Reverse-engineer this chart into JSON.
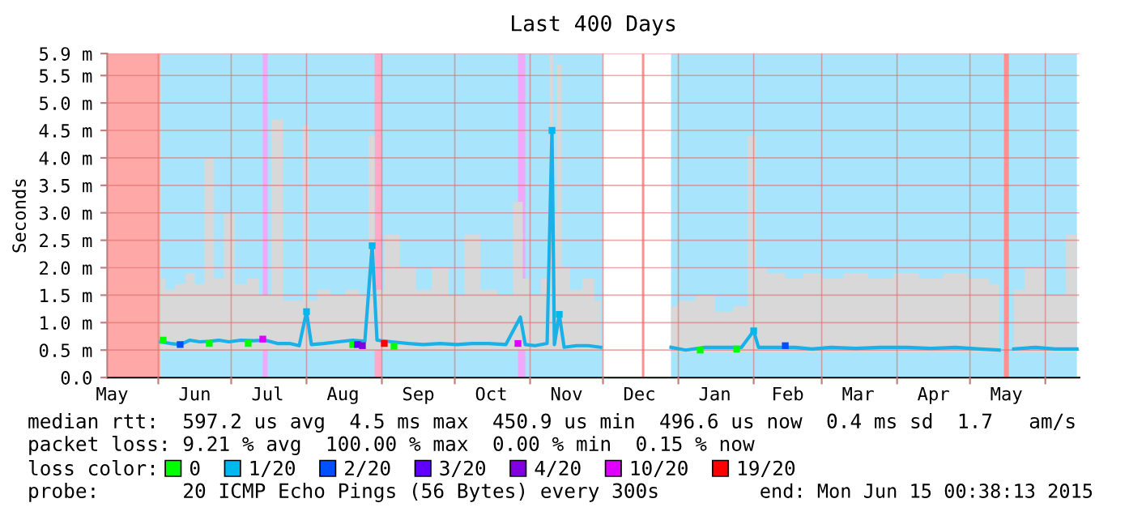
{
  "chart_data": {
    "type": "line",
    "title": "Last 400 Days",
    "ylabel": "Seconds",
    "xlim": [
      "2014-05-11",
      "2015-06-15"
    ],
    "xticks": [
      {
        "value": "2014-06-01",
        "label": null
      },
      {
        "value": "2014-07-01",
        "label": null
      },
      {
        "value": "2014-08-01",
        "label": null
      },
      {
        "value": "2014-09-01",
        "label": null
      },
      {
        "value": "2014-10-01",
        "label": null
      },
      {
        "value": "2014-11-01",
        "label": null
      },
      {
        "value": "2014-12-01",
        "label": null
      },
      {
        "value": "2015-01-01",
        "label": null
      },
      {
        "value": "2015-02-01",
        "label": null
      },
      {
        "value": "2015-03-01",
        "label": null
      },
      {
        "value": "2015-04-01",
        "label": null
      },
      {
        "value": "2015-05-01",
        "label": null
      },
      {
        "value": "2015-06-01",
        "label": null
      },
      {
        "value": "2014-05-13",
        "label": "May"
      },
      {
        "value": "2014-06-16",
        "label": "Jun"
      },
      {
        "value": "2014-07-16",
        "label": "Jul"
      },
      {
        "value": "2014-08-16",
        "label": "Aug"
      },
      {
        "value": "2014-09-16",
        "label": "Sep"
      },
      {
        "value": "2014-10-16",
        "label": "Oct"
      },
      {
        "value": "2014-11-16",
        "label": "Nov"
      },
      {
        "value": "2014-12-16",
        "label": "Dec"
      },
      {
        "value": "2015-01-16",
        "label": "Jan"
      },
      {
        "value": "2015-02-15",
        "label": "Feb"
      },
      {
        "value": "2015-03-16",
        "label": "Mar"
      },
      {
        "value": "2015-04-16",
        "label": "Apr"
      },
      {
        "value": "2015-05-16",
        "label": "May"
      }
    ],
    "ylim": [
      0,
      5.9
    ],
    "yticks": [
      {
        "value": 0,
        "label": "0.0"
      },
      {
        "value": 0.5,
        "label": "0.5 m"
      },
      {
        "value": 1.0,
        "label": "1.0 m"
      },
      {
        "value": 1.5,
        "label": "1.5 m"
      },
      {
        "value": 2.0,
        "label": "2.0 m"
      },
      {
        "value": 2.5,
        "label": "2.5 m"
      },
      {
        "value": 3.0,
        "label": "3.0 m"
      },
      {
        "value": 3.5,
        "label": "3.5 m"
      },
      {
        "value": 4.0,
        "label": "4.0 m"
      },
      {
        "value": 4.5,
        "label": "4.5 m"
      },
      {
        "value": 5.0,
        "label": "5.0 m"
      },
      {
        "value": 5.5,
        "label": "5.5 m"
      },
      {
        "value": 5.9,
        "label": "5.9 m"
      }
    ],
    "grid": true,
    "legend": "bottom",
    "legend_title": "loss color:",
    "bands": [
      {
        "axis": "x",
        "from": "2014-05-11",
        "to": "2014-06-02",
        "color": "#ffa8a8"
      },
      {
        "axis": "x",
        "from": "2014-06-02",
        "to": "2014-12-01",
        "color": "#a8e4fc"
      },
      {
        "axis": "x",
        "from": "2014-12-29",
        "to": "2015-06-14",
        "color": "#a8e4fc"
      },
      {
        "axis": "x",
        "from": "2014-07-14",
        "to": "2014-07-16",
        "color": "#f0a8f8"
      },
      {
        "axis": "x",
        "from": "2014-08-29",
        "to": "2014-09-01",
        "color": "#ffa8c8"
      },
      {
        "axis": "x",
        "from": "2014-10-27",
        "to": "2014-10-30",
        "color": "#f0a8f8"
      },
      {
        "axis": "x",
        "from": "2014-12-17",
        "to": "2014-12-18",
        "color": "#ff9090"
      },
      {
        "axis": "x",
        "from": "2015-05-15",
        "to": "2015-05-17",
        "color": "#ff9090"
      }
    ],
    "series": [
      {
        "color": "#1ab0e8",
        "x": [
          "2014-06-02",
          "2014-06-06",
          "2014-06-10",
          "2014-06-14",
          "2014-06-18",
          "2014-06-22",
          "2014-06-26",
          "2014-06-30",
          "2014-07-05",
          "2014-07-10",
          "2014-07-15",
          "2014-07-20",
          "2014-07-25",
          "2014-07-29",
          "2014-08-01",
          "2014-08-03",
          "2014-08-08",
          "2014-08-14",
          "2014-08-20",
          "2014-08-25",
          "2014-08-28",
          "2014-08-30",
          "2014-09-05",
          "2014-09-12",
          "2014-09-18",
          "2014-09-25",
          "2014-10-02",
          "2014-10-08",
          "2014-10-15",
          "2014-10-22",
          "2014-10-28",
          "2014-10-30",
          "2014-11-03",
          "2014-11-08",
          "2014-11-10",
          "2014-11-11",
          "2014-11-13",
          "2014-11-15",
          "2014-11-20",
          "2014-11-25",
          "2014-11-30",
          "2014-12-10",
          "2014-12-29",
          "2015-01-04",
          "2015-01-12",
          "2015-01-20",
          "2015-01-27",
          "2015-02-01",
          "2015-02-03",
          "2015-02-10",
          "2015-02-18",
          "2015-02-25",
          "2015-03-05",
          "2015-03-15",
          "2015-03-25",
          "2015-04-05",
          "2015-04-15",
          "2015-04-25",
          "2015-05-05",
          "2015-05-13",
          "2015-05-16",
          "2015-05-19",
          "2015-05-28",
          "2015-06-05",
          "2015-06-14"
        ],
        "values": [
          0.65,
          0.62,
          0.6,
          0.68,
          0.65,
          0.66,
          0.68,
          0.65,
          0.68,
          0.67,
          0.68,
          0.62,
          0.62,
          0.58,
          1.2,
          0.6,
          0.62,
          0.65,
          0.68,
          0.66,
          2.4,
          0.68,
          0.65,
          0.62,
          0.6,
          0.62,
          0.6,
          0.62,
          0.62,
          0.6,
          1.1,
          0.6,
          0.58,
          0.62,
          4.5,
          0.6,
          1.15,
          0.55,
          0.58,
          0.58,
          0.55,
          null,
          0.55,
          0.5,
          0.55,
          0.55,
          0.55,
          0.85,
          0.55,
          0.55,
          0.55,
          0.52,
          0.55,
          0.53,
          0.55,
          0.55,
          0.53,
          0.55,
          0.52,
          0.5,
          null,
          0.52,
          0.55,
          0.52,
          0.52
        ],
        "lower": [
          0.5,
          0.5,
          0.5,
          0.5,
          0.5,
          0.5,
          0.5,
          0.5,
          0.5,
          0.5,
          0.5,
          0.5,
          0.5,
          0.5,
          0.5,
          0.5,
          0.5,
          0.5,
          0.5,
          0.5,
          0.5,
          0.5,
          0.5,
          0.5,
          0.5,
          0.5,
          0.5,
          0.5,
          0.5,
          0.5,
          0.5,
          0.5,
          0.5,
          0.5,
          0.5,
          0.5,
          0.5,
          0.5,
          0.5,
          0.5,
          0.5,
          null,
          0.45,
          0.45,
          0.45,
          0.45,
          0.45,
          0.45,
          0.45,
          0.45,
          0.45,
          0.45,
          0.45,
          0.45,
          0.45,
          0.45,
          0.45,
          0.45,
          0.45,
          0.45,
          null,
          0.45,
          0.45,
          0.45,
          0.45
        ],
        "upper": [
          1.8,
          1.6,
          1.7,
          1.9,
          1.7,
          4.0,
          1.8,
          3.0,
          1.7,
          1.8,
          1.5,
          4.7,
          1.4,
          1.4,
          4.6,
          1.4,
          1.6,
          1.5,
          1.6,
          1.5,
          4.4,
          1.6,
          2.6,
          2.0,
          1.6,
          2.0,
          1.5,
          2.6,
          1.6,
          1.5,
          3.2,
          1.8,
          1.5,
          1.8,
          5.9,
          3.0,
          5.7,
          2.0,
          1.6,
          1.8,
          1.4,
          null,
          1.3,
          1.4,
          1.5,
          1.2,
          1.3,
          4.4,
          2.0,
          1.9,
          1.8,
          1.9,
          1.8,
          1.9,
          1.8,
          1.9,
          1.8,
          1.9,
          1.8,
          1.7,
          null,
          1.6,
          2.0,
          1.5,
          2.6
        ]
      },
      {
        "type": "scatter",
        "name": "0",
        "color": "#00ff00",
        "x": [
          "2014-06-03",
          "2014-06-22",
          "2014-07-08",
          "2014-08-20",
          "2014-09-06",
          "2015-01-10",
          "2015-01-25"
        ],
        "values": [
          0.68,
          0.62,
          0.62,
          0.6,
          0.57,
          0.5,
          0.52
        ]
      },
      {
        "type": "scatter",
        "name": "1/20",
        "color": "#00b8f0",
        "x": [
          "2014-08-01",
          "2014-08-28",
          "2014-11-10",
          "2014-11-13",
          "2015-02-01"
        ],
        "values": [
          1.2,
          2.4,
          4.5,
          1.15,
          0.85
        ]
      },
      {
        "type": "scatter",
        "name": "2/20",
        "color": "#0050ff",
        "x": [
          "2014-06-10",
          "2015-02-14"
        ],
        "values": [
          0.6,
          0.58
        ]
      },
      {
        "type": "scatter",
        "name": "3/20",
        "color": "#6000ff",
        "x": [
          "2014-08-22"
        ],
        "values": [
          0.6
        ]
      },
      {
        "type": "scatter",
        "name": "4/20",
        "color": "#8000e0",
        "x": [
          "2014-08-24"
        ],
        "values": [
          0.58
        ]
      },
      {
        "type": "scatter",
        "name": "10/20",
        "color": "#e000ff",
        "x": [
          "2014-07-14",
          "2014-10-27"
        ],
        "values": [
          0.7,
          0.62
        ]
      },
      {
        "type": "scatter",
        "name": "19/20",
        "color": "#ff0000",
        "x": [
          "2014-09-02"
        ],
        "values": [
          0.62
        ]
      }
    ],
    "annotations": [
      "median rtt:  597.2 us avg  4.5 ms max  450.9 us min  496.6 us now  0.4 ms sd  1.7   am/s",
      "packet loss: 9.21 % avg  100.00 % max  0.00 % min  0.15 % now",
      "probe:       20 ICMP Echo Pings (56 Bytes) every 300s",
      "end: Mon Jun 15 00:38:13 2015"
    ]
  }
}
